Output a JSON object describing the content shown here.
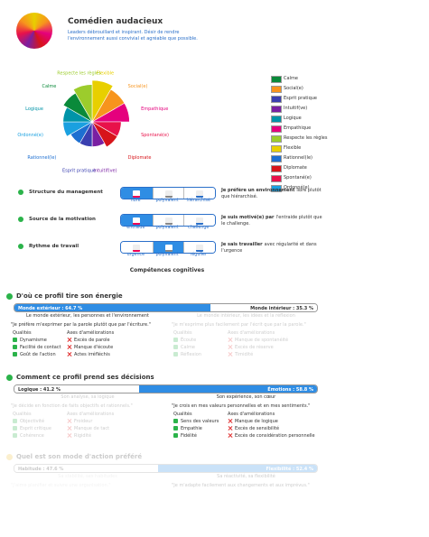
{
  "header": {
    "title": "Comédien audacieux",
    "description": "Leaders débrouillard et inspirant. Désir de rendre l'environnement aussi convivial et agréable que possible."
  },
  "wheel": {
    "rlim": [
      0,
      10
    ],
    "segments": [
      {
        "label": "Flexible",
        "value": 10,
        "color": "#e8cf00"
      },
      {
        "label": "Social(e)",
        "value": 9,
        "color": "#f7941d"
      },
      {
        "label": "Empathique",
        "value": 9,
        "color": "#e5007d"
      },
      {
        "label": "Spontané(e)",
        "value": 7,
        "color": "#e8114a"
      },
      {
        "label": "Diplomate",
        "value": 7,
        "color": "#d7141a"
      },
      {
        "label": "Intuitif(ve)",
        "value": 6,
        "color": "#7a1fa2"
      },
      {
        "label": "Esprit pratique",
        "value": 6,
        "color": "#3a3fb0"
      },
      {
        "label": "Rationnel(le)",
        "value": 6,
        "color": "#1d6fd1"
      },
      {
        "label": "Ordonné(e)",
        "value": 7,
        "color": "#1aa0e0"
      },
      {
        "label": "Logique",
        "value": 7,
        "color": "#0094a8"
      },
      {
        "label": "Calme",
        "value": 8,
        "color": "#0a8a3a"
      },
      {
        "label": "Respecte les règles",
        "value": 9,
        "color": "#9ccc2c"
      }
    ],
    "legend": [
      {
        "name": "Calme",
        "color": "#0a8a3a"
      },
      {
        "name": "Social(e)",
        "color": "#f7941d"
      },
      {
        "name": "Esprit pratique",
        "color": "#3a3fb0"
      },
      {
        "name": "Intuitif(ve)",
        "color": "#7a1fa2"
      },
      {
        "name": "Logique",
        "color": "#0094a8"
      },
      {
        "name": "Empathique",
        "color": "#e5007d"
      },
      {
        "name": "Respecte les règles",
        "color": "#9ccc2c"
      },
      {
        "name": "Flexible",
        "color": "#e8cf00"
      },
      {
        "name": "Rationnel(le)",
        "color": "#1d6fd1"
      },
      {
        "name": "Diplomate",
        "color": "#d7141a"
      },
      {
        "name": "Spontané(e)",
        "color": "#e8114a"
      },
      {
        "name": "Ordonné(e)",
        "color": "#1aa0e0"
      }
    ]
  },
  "preferences": [
    {
      "label": "Structure du management",
      "options": [
        "libre",
        "polyvalent",
        "hiérarchisé"
      ],
      "selected": 0,
      "statement": {
        "strong": "Je préfère un environnement",
        "rest": "libre plutôt que hiérarchisé."
      }
    },
    {
      "label": "Source de la motivation",
      "options": [
        "entraide",
        "polyvalent",
        "challenge"
      ],
      "selected": 0,
      "statement": {
        "strong": "Je suis motivé(e) par",
        "rest": "l'entraide plutôt que le challenge."
      }
    },
    {
      "label": "Rythme de travail",
      "options": [
        "urgence",
        "polyvalent",
        "régulier"
      ],
      "selected": 1,
      "statement": {
        "strong": "Je sais travailler",
        "rest": "avec régularité et dans l'urgence"
      }
    }
  ],
  "section_title": "Compétences cognitives",
  "dimensions": [
    {
      "title": "D'où ce profil tire son énergie",
      "active": true,
      "dominant": "left",
      "left": {
        "text": "Monde extérieur : 64.7 %",
        "value": 64.7
      },
      "right": {
        "text": "Monde intérieur : 35.3 %",
        "value": 35.3
      },
      "left_detail": {
        "caption": "Le monde extérieur, les personnes et l'environnement",
        "quote": "\"Je préfère m'exprimer par la parole plutôt que par l'écriture.\"",
        "qualities_title": "Qualités",
        "qualities": [
          "Dynamisme",
          "Facilité de contact",
          "Goût de l'action"
        ],
        "improvements_title": "Axes d'améliorations",
        "improvements": [
          "Excès de parole",
          "Manque d'écoute",
          "Actes irréfléchis"
        ]
      },
      "right_detail": {
        "caption": "Le monde intérieur, les idées et la réflexion",
        "quote": "\"Je m'exprime plus facilement par l'écrit que par la parole.\"",
        "qualities_title": "Qualités",
        "qualities": [
          "Écoute",
          "Calme",
          "Réflexion"
        ],
        "improvements_title": "Axes d'améliorations",
        "improvements": [
          "Manque de spontanéité",
          "Excès de réserve",
          "Timidité"
        ]
      }
    },
    {
      "title": "Comment ce profil prend ses décisions",
      "active": true,
      "dominant": "right",
      "left": {
        "text": "Logique : 41.2 %",
        "value": 41.2
      },
      "right": {
        "text": "Émotions : 58.8 %",
        "value": 58.8
      },
      "left_detail": {
        "caption": "Son analyse, sa logique",
        "quote": "\"Je décide en fonction de faits objectifs et rationnels.\"",
        "qualities_title": "Qualités",
        "qualities": [
          "Objectivité",
          "Esprit critique",
          "Cohérence"
        ],
        "improvements_title": "Axes d'améliorations",
        "improvements": [
          "Froideur",
          "Manque de tact",
          "Rigidité"
        ]
      },
      "right_detail": {
        "caption": "Son expérience, son cœur",
        "quote": "\"Je crois en mes valeurs personnelles et en mes sentiments.\"",
        "qualities_title": "Qualités",
        "qualities": [
          "Sens des valeurs",
          "Empathie",
          "Fidélité"
        ],
        "improvements_title": "Axes d'améliorations",
        "improvements": [
          "Manque de logique",
          "Excès de sensibilité",
          "Excès de considération personnelle"
        ]
      }
    },
    {
      "title": "Quel est son mode d'action préféré",
      "active": false,
      "dominant": "right",
      "left": {
        "text": "Habitude : 47.6 %",
        "value": 47.6
      },
      "right": {
        "text": "Flexibilité : 52.4 %",
        "value": 52.4
      },
      "left_detail": {
        "caption": "Sa stabilité, ses habitudes",
        "quote": "\"J'aime planifier et suivre une organisation.\""
      },
      "right_detail": {
        "caption": "Sa réactivité, sa flexibilité",
        "quote": "\"Je m'adapte facilement aux changements et aux imprévus.\""
      }
    }
  ]
}
